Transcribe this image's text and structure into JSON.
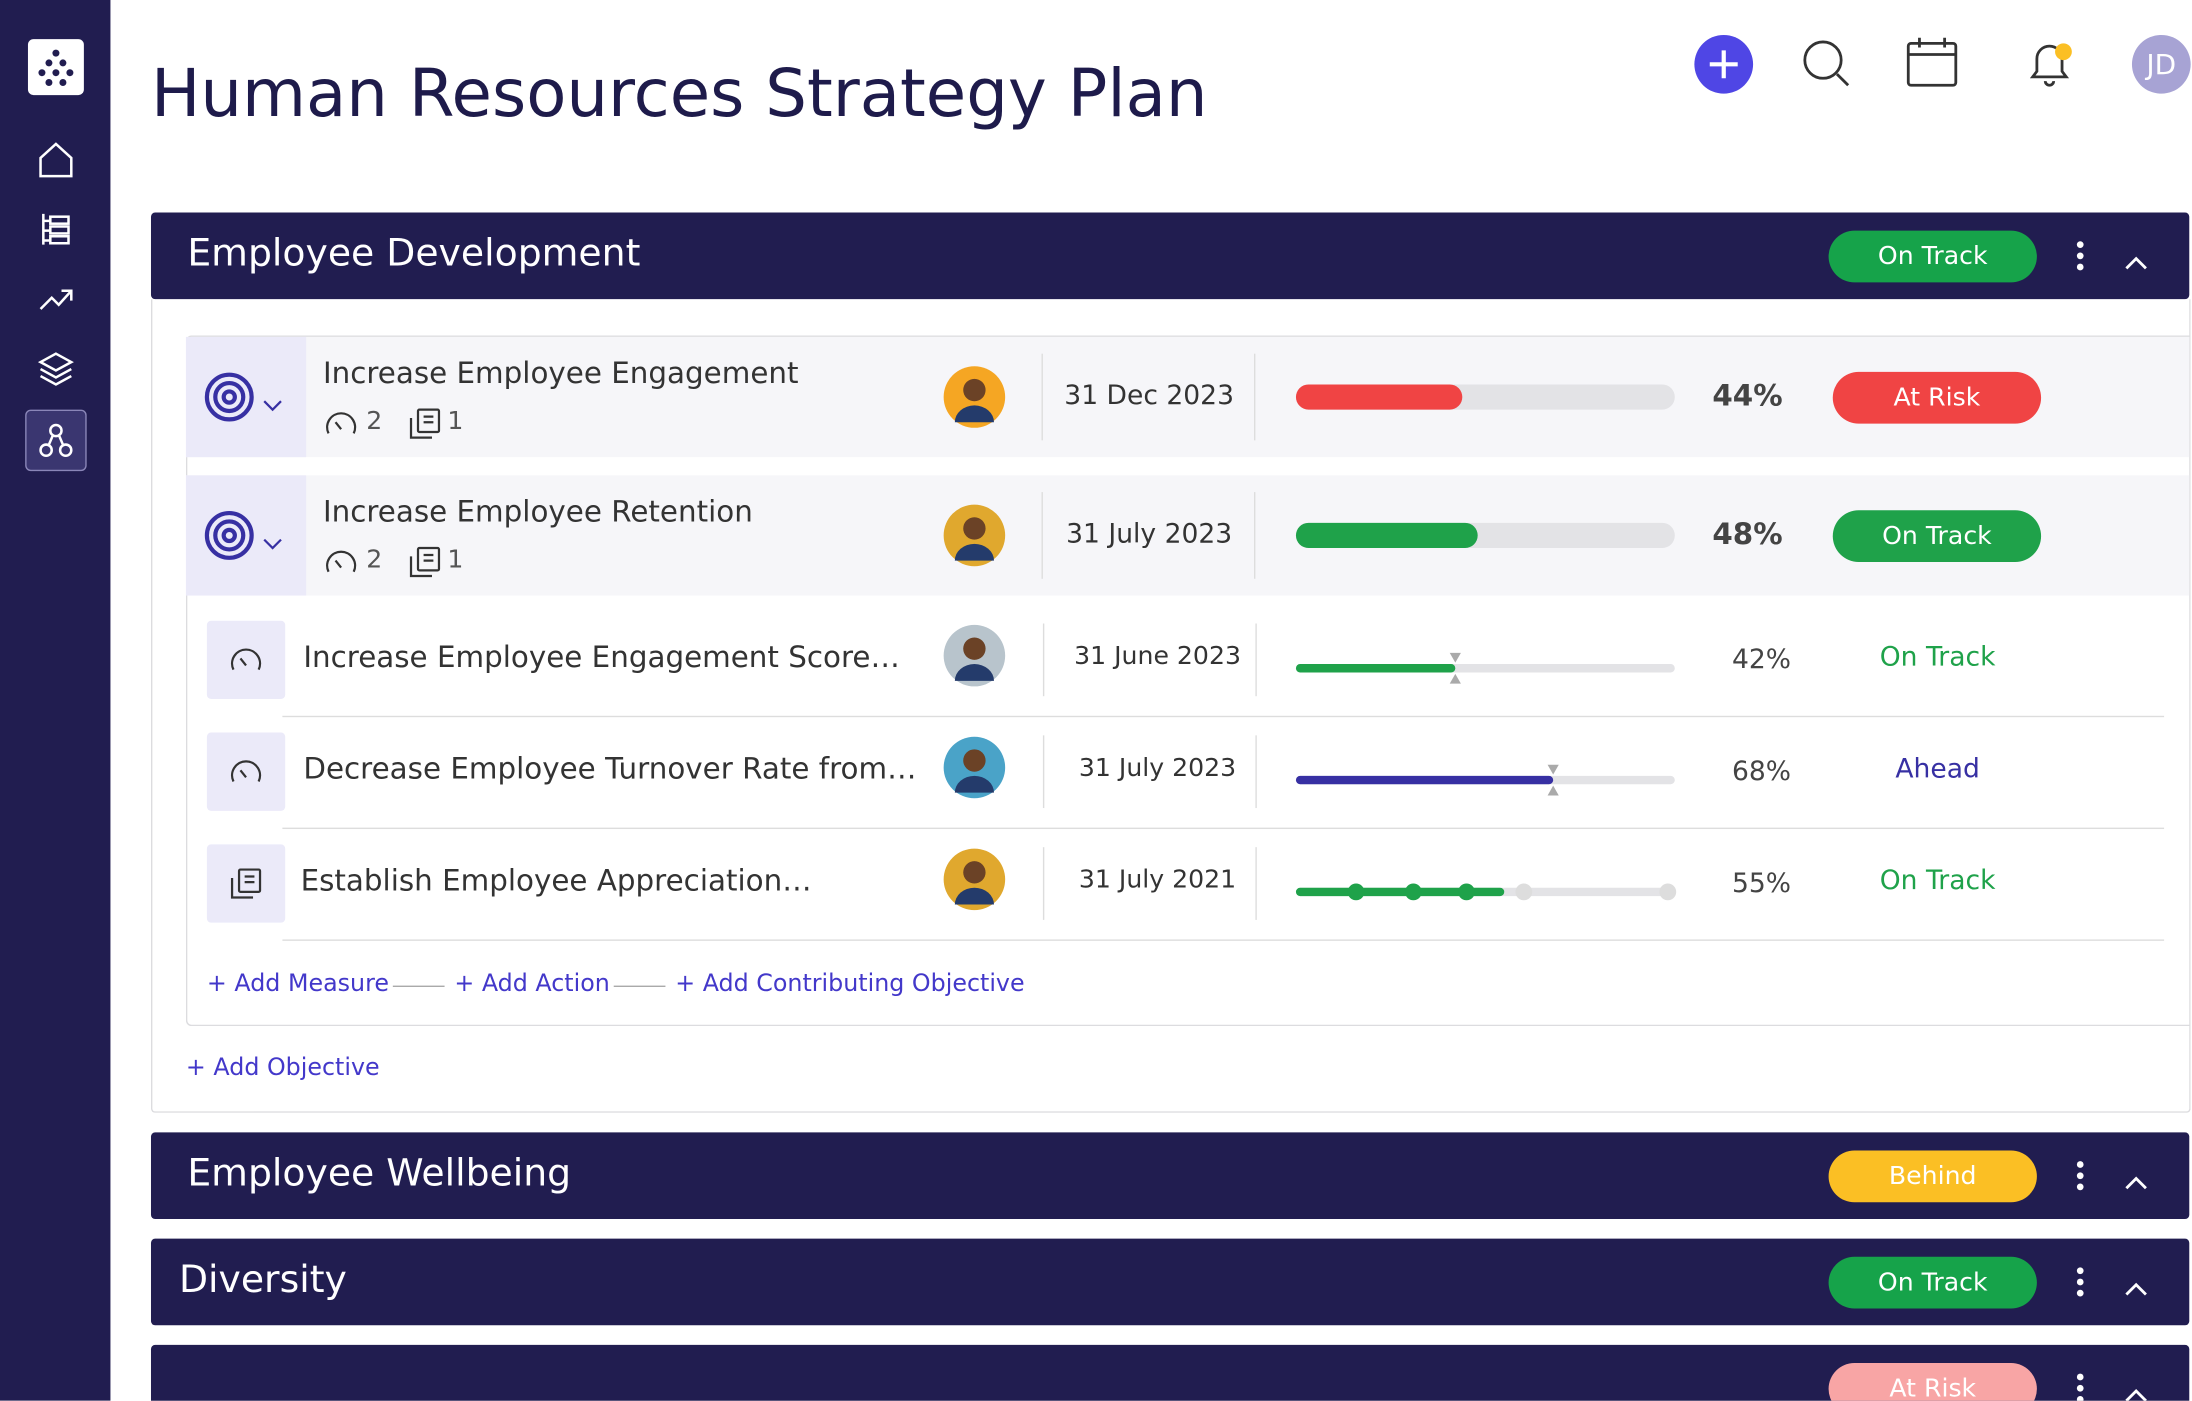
{
  "header": {
    "title": "Human Resources Strategy Plan",
    "user_initials": "JD"
  },
  "sections": [
    {
      "title": "Employee Development",
      "status": "On Track",
      "status_color": "#16a34a",
      "expanded": true,
      "objectives": [
        {
          "title": "Increase Employee Engagement",
          "measures": "2",
          "actions": "1",
          "date": "31 Dec 2023",
          "progress": 44,
          "progress_label": "44%",
          "bar_color": "#f04444",
          "status": "At Risk",
          "status_color": "#f04444"
        },
        {
          "title": "Increase Employee Retention",
          "measures": "2",
          "actions": "1",
          "date": "31 July 2023",
          "progress": 48,
          "progress_label": "48%",
          "bar_color": "#1fa24a",
          "status": "On Track",
          "status_color": "#1fa24a",
          "children": [
            {
              "kind": "measure",
              "title": "Increase Employee Engagement Score…",
              "date": "31 June 2023",
              "progress": 42,
              "progress_label": "42%",
              "bar_color": "#1fa24a",
              "status": "On Track",
              "status_color": "#1fa24a"
            },
            {
              "kind": "measure",
              "title": "Decrease Employee Turnover Rate from…",
              "date": "31 July 2023",
              "progress": 68,
              "progress_label": "68%",
              "bar_color": "#3730a3",
              "status": "Ahead",
              "status_color": "#3730a3"
            },
            {
              "kind": "action",
              "title": "Establish Employee Appreciation…",
              "date": "31 July 2021",
              "progress": 55,
              "progress_label": "55%",
              "bar_color": "#1fa24a",
              "status": "On Track",
              "status_color": "#1fa24a"
            }
          ]
        }
      ],
      "links": [
        "+ Add Measure",
        "+ Add Action",
        "+ Add Contributing Objective"
      ],
      "add_objective": "+ Add Objective"
    },
    {
      "title": "Employee Wellbeing",
      "status": "Behind",
      "status_color": "#fbbf24"
    },
    {
      "title": "Diversity",
      "status": "On Track",
      "status_color": "#16a34a"
    },
    {
      "status": "At Risk",
      "status_color": "#f8a5a5"
    }
  ]
}
